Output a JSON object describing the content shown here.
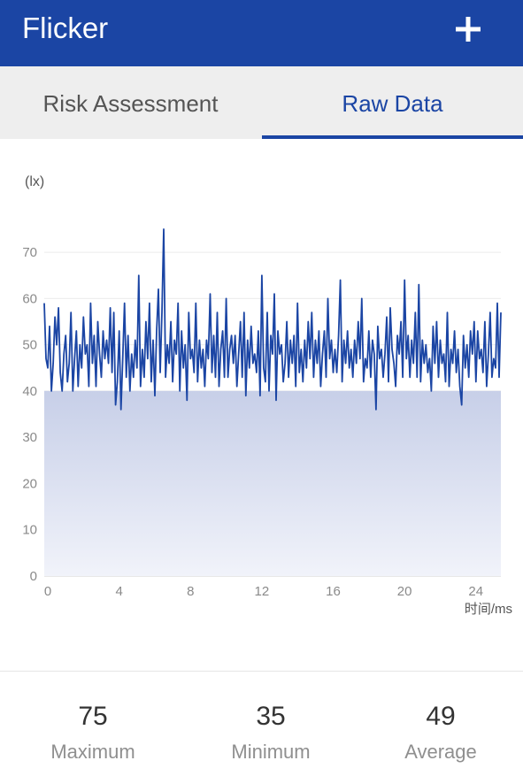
{
  "app": {
    "title": "Flicker",
    "add_icon": "plus-icon"
  },
  "tabs": [
    {
      "label": "Risk Assessment",
      "selected": false
    },
    {
      "label": "Raw Data",
      "selected": true
    }
  ],
  "colors": {
    "accent": "#1b45a4",
    "tab_bg": "#eeeeee",
    "fill_top": "#c7cfe8",
    "fill_bottom": "#f1f3fa"
  },
  "chart_data": {
    "type": "area",
    "ylabel": "(lx)",
    "xlabel": "时间/ms",
    "xlim": [
      0,
      25.6
    ],
    "ylim": [
      0,
      75
    ],
    "xticks": [
      "0",
      "4",
      "8",
      "12",
      "16",
      "20",
      "24"
    ],
    "yticks": [
      "0",
      "10",
      "20",
      "30",
      "40",
      "50",
      "60",
      "70"
    ],
    "grid": "horizontal",
    "series": [
      {
        "x": [
          0,
          0.1,
          0.2,
          0.3,
          0.4,
          0.5,
          0.6,
          0.7,
          0.8,
          0.9,
          1,
          1.1,
          1.2,
          1.3,
          1.4,
          1.5,
          1.6,
          1.7,
          1.8,
          1.9,
          2,
          2.1,
          2.2,
          2.3,
          2.4,
          2.5,
          2.6,
          2.7,
          2.8,
          2.9,
          3,
          3.1,
          3.2,
          3.3,
          3.4,
          3.5,
          3.6,
          3.7,
          3.8,
          3.9,
          4,
          4.1,
          4.2,
          4.3,
          4.4,
          4.5,
          4.6,
          4.7,
          4.8,
          4.9,
          5,
          5.1,
          5.2,
          5.3,
          5.4,
          5.5,
          5.6,
          5.7,
          5.8,
          5.9,
          6,
          6.1,
          6.2,
          6.3,
          6.4,
          6.5,
          6.6,
          6.7,
          6.8,
          6.9,
          7,
          7.1,
          7.2,
          7.3,
          7.4,
          7.5,
          7.6,
          7.7,
          7.8,
          7.9,
          8,
          8.1,
          8.2,
          8.3,
          8.4,
          8.5,
          8.6,
          8.7,
          8.8,
          8.9,
          9,
          9.1,
          9.2,
          9.3,
          9.4,
          9.5,
          9.6,
          9.7,
          9.8,
          9.9,
          10,
          10.1,
          10.2,
          10.3,
          10.4,
          10.5,
          10.6,
          10.7,
          10.8,
          10.9,
          11,
          11.1,
          11.2,
          11.3,
          11.4,
          11.5,
          11.6,
          11.7,
          11.8,
          11.9,
          12,
          12.1,
          12.2,
          12.3,
          12.4,
          12.5,
          12.6,
          12.7,
          12.8,
          12.9,
          13,
          13.1,
          13.2,
          13.3,
          13.4,
          13.5,
          13.6,
          13.7,
          13.8,
          13.9,
          14,
          14.1,
          14.2,
          14.3,
          14.4,
          14.5,
          14.6,
          14.7,
          14.8,
          14.9,
          15,
          15.1,
          15.2,
          15.3,
          15.4,
          15.5,
          15.6,
          15.7,
          15.8,
          15.9,
          16,
          16.1,
          16.2,
          16.3,
          16.4,
          16.5,
          16.6,
          16.7,
          16.8,
          16.9,
          17,
          17.1,
          17.2,
          17.3,
          17.4,
          17.5,
          17.6,
          17.7,
          17.8,
          17.9,
          18,
          18.1,
          18.2,
          18.3,
          18.4,
          18.5,
          18.6,
          18.7,
          18.8,
          18.9,
          19,
          19.1,
          19.2,
          19.3,
          19.4,
          19.5,
          19.6,
          19.7,
          19.8,
          19.9,
          20,
          20.1,
          20.2,
          20.3,
          20.4,
          20.5,
          20.6,
          20.7,
          20.8,
          20.9,
          21,
          21.1,
          21.2,
          21.3,
          21.4,
          21.5,
          21.6,
          21.7,
          21.8,
          21.9,
          22,
          22.1,
          22.2,
          22.3,
          22.4,
          22.5,
          22.6,
          22.7,
          22.8,
          22.9,
          23,
          23.1,
          23.2,
          23.3,
          23.4,
          23.5,
          23.6,
          23.7,
          23.8,
          23.9,
          24,
          24.1,
          24.2,
          24.3,
          24.4,
          24.5,
          24.6,
          24.7,
          24.8,
          24.9,
          25,
          25.1,
          25.2,
          25.3,
          25.4,
          25.5,
          25.6
        ],
        "values": [
          59,
          47,
          45,
          54,
          40,
          46,
          56,
          50,
          58,
          44,
          40,
          48,
          52,
          42,
          46,
          57,
          40,
          47,
          53,
          41,
          50,
          45,
          56,
          48,
          50,
          41,
          59,
          46,
          52,
          41,
          55,
          48,
          43,
          53,
          47,
          51,
          46,
          58,
          44,
          57,
          37,
          42,
          53,
          36,
          47,
          59,
          43,
          52,
          40,
          48,
          43,
          51,
          45,
          65,
          41,
          49,
          43,
          55,
          47,
          59,
          42,
          51,
          39,
          53,
          62,
          44,
          57,
          75,
          43,
          50,
          46,
          55,
          42,
          51,
          48,
          59,
          40,
          53,
          45,
          50,
          38,
          57,
          47,
          49,
          44,
          59,
          42,
          51,
          45,
          49,
          41,
          51,
          47,
          61,
          44,
          52,
          43,
          57,
          41,
          49,
          53,
          43,
          60,
          43,
          49,
          52,
          46,
          52,
          41,
          48,
          55,
          43,
          57,
          39,
          51,
          45,
          54,
          46,
          48,
          44,
          53,
          39,
          65,
          45,
          42,
          57,
          40,
          52,
          48,
          61,
          38,
          53,
          48,
          50,
          42,
          46,
          55,
          43,
          51,
          46,
          52,
          41,
          59,
          44,
          49,
          42,
          51,
          45,
          55,
          47,
          57,
          43,
          51,
          46,
          53,
          41,
          48,
          53,
          43,
          60,
          47,
          51,
          44,
          49,
          44,
          52,
          64,
          42,
          51,
          46,
          53,
          45,
          49,
          43,
          51,
          46,
          55,
          47,
          60,
          42,
          47,
          45,
          53,
          43,
          51,
          48,
          36,
          54,
          47,
          49,
          43,
          48,
          56,
          42,
          58,
          49,
          46,
          41,
          52,
          48,
          55,
          43,
          64,
          47,
          52,
          43,
          51,
          46,
          57,
          43,
          63,
          42,
          51,
          46,
          50,
          44,
          47,
          40,
          54,
          46,
          55,
          43,
          51,
          46,
          48,
          42,
          57,
          41,
          49,
          46,
          53,
          44,
          49,
          41,
          37,
          52,
          45,
          50,
          43,
          53,
          48,
          55,
          42,
          53,
          47,
          49,
          44,
          55,
          41,
          48,
          57,
          43,
          47,
          45,
          59,
          43,
          57
        ]
      }
    ]
  },
  "stats": [
    {
      "value": "75",
      "label": "Maximum"
    },
    {
      "value": "35",
      "label": "Minimum"
    },
    {
      "value": "49",
      "label": "Average"
    }
  ]
}
